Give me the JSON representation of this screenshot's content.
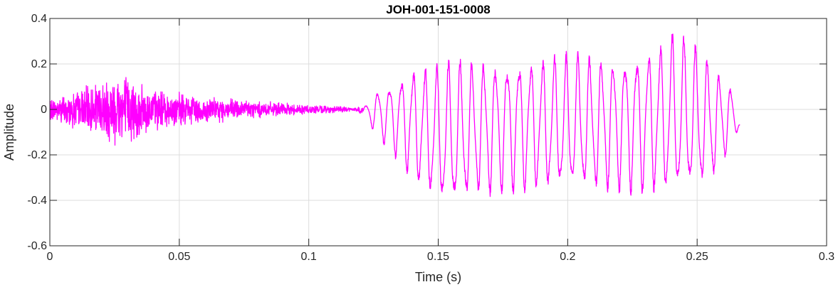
{
  "chart_data": {
    "type": "line",
    "title": "JOH-001-151-0008",
    "xlabel": "Time (s)",
    "ylabel": "Amplitude",
    "xlim": [
      0,
      0.3
    ],
    "ylim": [
      -0.6,
      0.4
    ],
    "x_ticks": [
      0,
      0.05,
      0.1,
      0.15,
      0.2,
      0.25,
      0.3
    ],
    "x_tick_labels": [
      "0",
      "0.05",
      "0.1",
      "0.15",
      "0.2",
      "0.25",
      "0.3"
    ],
    "y_ticks": [
      -0.6,
      -0.4,
      -0.2,
      0,
      0.2,
      0.4
    ],
    "y_tick_labels": [
      "-0.6",
      "-0.4",
      "-0.2",
      "0",
      "0.2",
      "0.4"
    ],
    "grid": true,
    "line_color": "#ff00ff",
    "series": [
      {
        "envelope": [
          {
            "t": 0.0,
            "max": 0.05,
            "min": -0.05
          },
          {
            "t": 0.01,
            "max": 0.09,
            "min": -0.1
          },
          {
            "t": 0.018,
            "max": 0.13,
            "min": -0.14
          },
          {
            "t": 0.027,
            "max": 0.21,
            "min": -0.2
          },
          {
            "t": 0.035,
            "max": 0.12,
            "min": -0.13
          },
          {
            "t": 0.045,
            "max": 0.09,
            "min": -0.09
          },
          {
            "t": 0.06,
            "max": 0.06,
            "min": -0.07
          },
          {
            "t": 0.075,
            "max": 0.05,
            "min": -0.05
          },
          {
            "t": 0.09,
            "max": 0.03,
            "min": -0.03
          },
          {
            "t": 0.105,
            "max": 0.02,
            "min": -0.02
          },
          {
            "t": 0.118,
            "max": 0.01,
            "min": -0.01
          },
          {
            "t": 0.122,
            "max": 0.02,
            "min": -0.04
          },
          {
            "t": 0.126,
            "max": 0.09,
            "min": -0.12
          },
          {
            "t": 0.133,
            "max": 0.14,
            "min": -0.21
          },
          {
            "t": 0.14,
            "max": 0.21,
            "min": -0.33
          },
          {
            "t": 0.15,
            "max": 0.22,
            "min": -0.45
          },
          {
            "t": 0.155,
            "max": 0.24,
            "min": -0.47
          },
          {
            "t": 0.165,
            "max": 0.24,
            "min": -0.41
          },
          {
            "t": 0.18,
            "max": 0.25,
            "min": -0.38
          },
          {
            "t": 0.2,
            "max": 0.26,
            "min": -0.39
          },
          {
            "t": 0.22,
            "max": 0.26,
            "min": -0.38
          },
          {
            "t": 0.235,
            "max": 0.31,
            "min": -0.4
          },
          {
            "t": 0.242,
            "max": 0.37,
            "min": -0.41
          },
          {
            "t": 0.25,
            "max": 0.3,
            "min": -0.39
          },
          {
            "t": 0.258,
            "max": 0.19,
            "min": -0.3
          },
          {
            "t": 0.263,
            "max": 0.12,
            "min": -0.17
          },
          {
            "t": 0.2665,
            "max": -0.07,
            "min": -0.07
          }
        ]
      }
    ]
  }
}
